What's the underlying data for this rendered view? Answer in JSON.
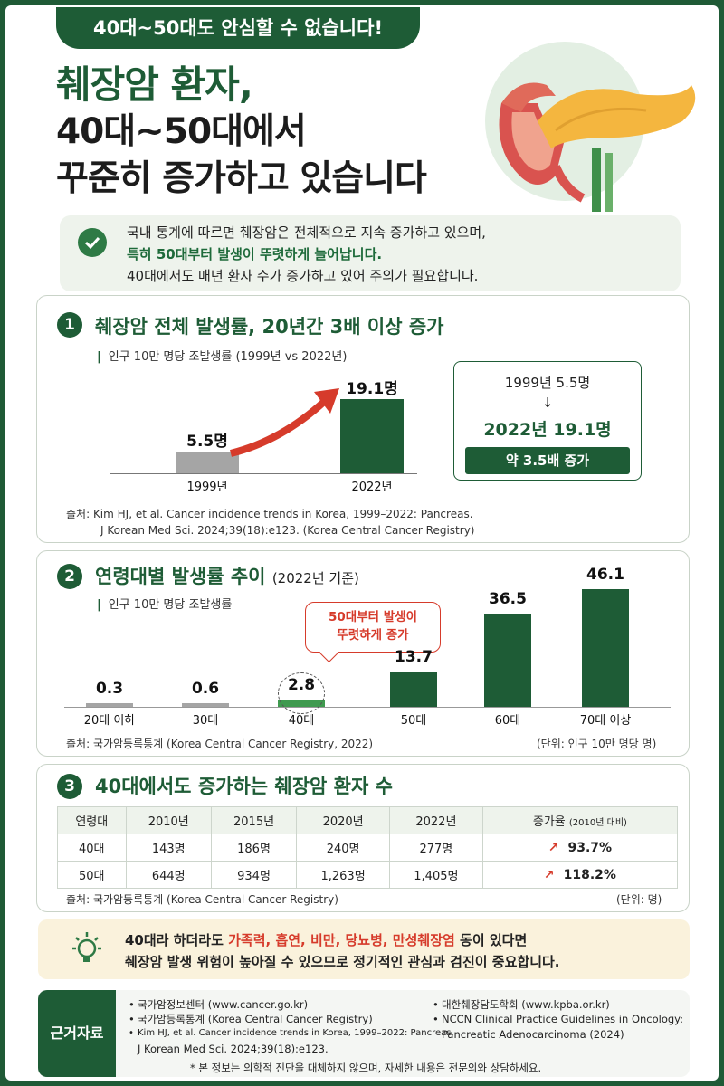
{
  "banner": "40대~50대도 안심할 수 없습니다!",
  "headline": [
    "췌장암 환자,",
    "40대~50대에서",
    "꾸준히 증가하고 있습니다"
  ],
  "intro": {
    "line1": "국내 통계에 따르면 췌장암은 전체적으로 지속 증가하고 있으며,",
    "line2": "특히 50대부터 발생이 뚜렷하게 늘어납니다.",
    "line3": "40대에서도 매년 환자 수가 증가하고 있어 주의가 필요합니다."
  },
  "section1": {
    "number": "1",
    "title": "췌장암 전체 발생률, 20년간 3배 이상 증가",
    "subtitle": "인구 10만 명당 조발생률 (1999년 vs 2022년)",
    "compare": {
      "from": "1999년 5.5명",
      "arrow": "↓",
      "to": "2022년 19.1명",
      "badge": "약 3.5배 증가"
    },
    "source_line1": "출처: Kim HJ, et al.  Cancer incidence trends in Korea, 1999–2022: Pancreas.",
    "source_line2": "J Korean Med Sci. 2024;39(18):e123.  (Korea Central Cancer Registry)"
  },
  "section2": {
    "number": "2",
    "title": "연령대별 발생률 추이",
    "title_suffix": "(2022년 기준)",
    "subtitle": "인구 10만 명당 조발생률",
    "callout": [
      "50대부터 발생이",
      "뚜렷하게 증가"
    ],
    "source": "출처: 국가암등록통계 (Korea Central Cancer Registry, 2022)",
    "unit": "(단위: 인구 10만 명당 명)"
  },
  "section3": {
    "number": "3",
    "title": "40대에서도 증가하는 췌장암 환자 수",
    "headers": [
      "연령대",
      "2010년",
      "2015년",
      "2020년",
      "2022년",
      "증가율"
    ],
    "increase_note": "(2010년 대비)",
    "rows": [
      [
        "40대",
        "143명",
        "186명",
        "240명",
        "277명",
        "93.7%"
      ],
      [
        "50대",
        "644명",
        "934명",
        "1,263명",
        "1,405명",
        "118.2%"
      ]
    ],
    "source": "출처: 국가암등록통계 (Korea Central Cancer Registry)",
    "unit": "(단위: 명)"
  },
  "tip": {
    "line1_pre": "40대라 하더라도 ",
    "line1_red": "가족력, 흡연, 비만, 당뇨병, 만성췌장염",
    "line1_post": " 동이 있다면",
    "line2": "췌장암 발생 위험이 높아질 수 있으므로 정기적인 관심과 검진이 중요합니다."
  },
  "references": {
    "label": "근거자료",
    "left": [
      "국가암정보센터 (www.cancer.go.kr)",
      "국가암등록통계 (Korea Central Cancer Registry)",
      "Kim HJ, et al. Cancer incidence trends in Korea, 1999–2022: Pancreas."
    ],
    "left_cont": "J Korean Med Sci. 2024;39(18):e123.",
    "right": [
      "대한췌장담도학회 (www.kpba.or.kr)",
      "NCCN Clinical Practice Guidelines in Oncology:"
    ],
    "right_cont": "Pancreatic Adenocarcinoma (2024)",
    "note": "* 본 정보는 의학적 진단을 대체하지 않으며, 자세한 내용은 전문의와 상담하세요."
  },
  "colors": {
    "green": "#1e5c36",
    "gray": "#a5a5a5",
    "red": "#d63b2b",
    "light_green": "#3f9a4f"
  },
  "chart_data": [
    {
      "type": "bar",
      "categories": [
        "1999년",
        "2022년"
      ],
      "values": [
        5.5,
        19.1
      ],
      "value_labels": [
        "5.5명",
        "19.1명"
      ],
      "ylim": [
        0,
        20
      ]
    },
    {
      "type": "bar",
      "categories": [
        "20대 이하",
        "30대",
        "40대",
        "50대",
        "60대",
        "70대 이상"
      ],
      "values": [
        0.3,
        0.6,
        2.8,
        13.7,
        36.5,
        46.1
      ],
      "value_labels": [
        "0.3",
        "0.6",
        "2.8",
        "13.7",
        "36.5",
        "46.1"
      ],
      "ylim": [
        0,
        46.1
      ]
    }
  ]
}
